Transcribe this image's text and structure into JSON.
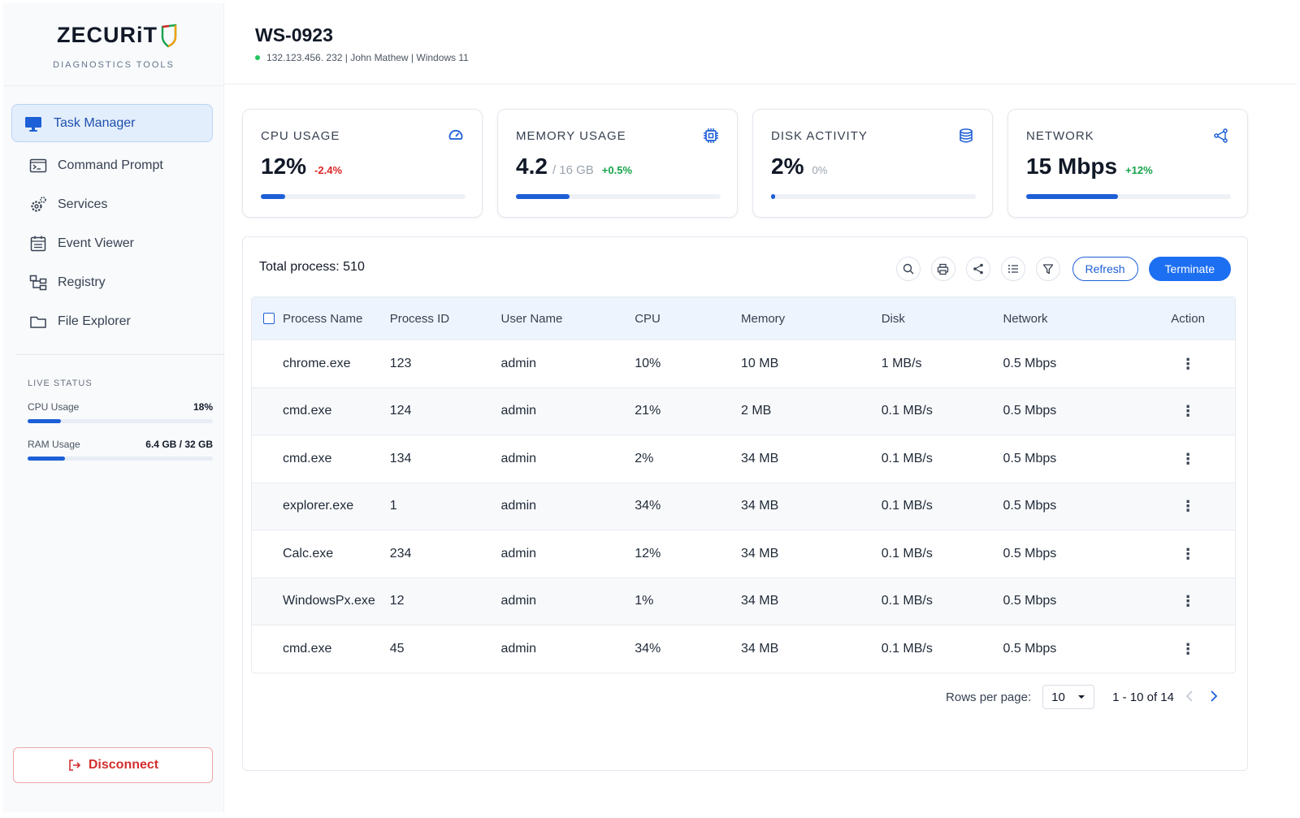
{
  "brand": {
    "name": "ZECURiT",
    "subtitle": "DIAGNOSTICS TOOLS"
  },
  "sidebar": {
    "items": [
      {
        "label": "Task Manager",
        "icon": "monitor-icon",
        "active": true
      },
      {
        "label": "Command Prompt",
        "icon": "terminal-icon"
      },
      {
        "label": "Services",
        "icon": "gears-icon"
      },
      {
        "label": "Event Viewer",
        "icon": "calendar-list-icon"
      },
      {
        "label": "Registry",
        "icon": "registry-tree-icon"
      },
      {
        "label": "File Explorer",
        "icon": "folder-icon"
      }
    ],
    "live_status": {
      "title": "LIVE STATUS",
      "cpu": {
        "label": "CPU Usage",
        "value": "18%",
        "fraction": 0.18
      },
      "ram": {
        "label": "RAM Usage",
        "value": "6.4 GB / 32 GB",
        "fraction": 0.2
      }
    },
    "disconnect_label": "Disconnect"
  },
  "header": {
    "host": "WS-0923",
    "meta": "132.123.456. 232 | John Mathew | Windows 11",
    "status_color": "#22c55e"
  },
  "cards": [
    {
      "label": "CPU USAGE",
      "value": "12%",
      "sub": "",
      "delta": "-2.4%",
      "trend": "neg",
      "fraction": 0.12,
      "icon": "gauge-icon"
    },
    {
      "label": "MEMORY USAGE",
      "value": "4.2",
      "sub": "/ 16 GB",
      "delta": "+0.5%",
      "trend": "pos",
      "fraction": 0.26,
      "icon": "chip-icon"
    },
    {
      "label": "DISK ACTIVITY",
      "value": "2%",
      "sub": "",
      "delta": "0%",
      "trend": "neu",
      "fraction": 0.02,
      "icon": "database-icon"
    },
    {
      "label": "NETWORK",
      "value": "15 Mbps",
      "sub": "",
      "delta": "+12%",
      "trend": "pos",
      "fraction": 0.45,
      "icon": "network-icon"
    }
  ],
  "process": {
    "total_label": "Total process: 510",
    "refresh_label": "Refresh",
    "terminate_label": "Terminate",
    "columns": [
      "Process Name",
      "Process ID",
      "User Name",
      "CPU",
      "Memory",
      "Disk",
      "Network",
      "Action"
    ],
    "rows": [
      [
        "chrome.exe",
        "123",
        "admin",
        "10%",
        "10 MB",
        "1 MB/s",
        "0.5 Mbps"
      ],
      [
        "cmd.exe",
        "124",
        "admin",
        "21%",
        "2 MB",
        "0.1 MB/s",
        "0.5 Mbps"
      ],
      [
        "cmd.exe",
        "134",
        "admin",
        "2%",
        "34 MB",
        "0.1 MB/s",
        "0.5 Mbps"
      ],
      [
        "explorer.exe",
        "1",
        "admin",
        "34%",
        "34 MB",
        "0.1 MB/s",
        "0.5 Mbps"
      ],
      [
        "Calc.exe",
        "234",
        "admin",
        "12%",
        "34 MB",
        "0.1 MB/s",
        "0.5 Mbps"
      ],
      [
        "WindowsPx.exe",
        "12",
        "admin",
        "1%",
        "34 MB",
        "0.1 MB/s",
        "0.5 Mbps"
      ],
      [
        "cmd.exe",
        "45",
        "admin",
        "34%",
        "34 MB",
        "0.1 MB/s",
        "0.5 Mbps"
      ]
    ],
    "pagination": {
      "rows_label": "Rows per page:",
      "rows_value": "10",
      "range": "1 - 10 of 14"
    }
  },
  "colors": {
    "accent": "#1d5fd6",
    "danger": "#dc2626",
    "success": "#16a34a"
  }
}
